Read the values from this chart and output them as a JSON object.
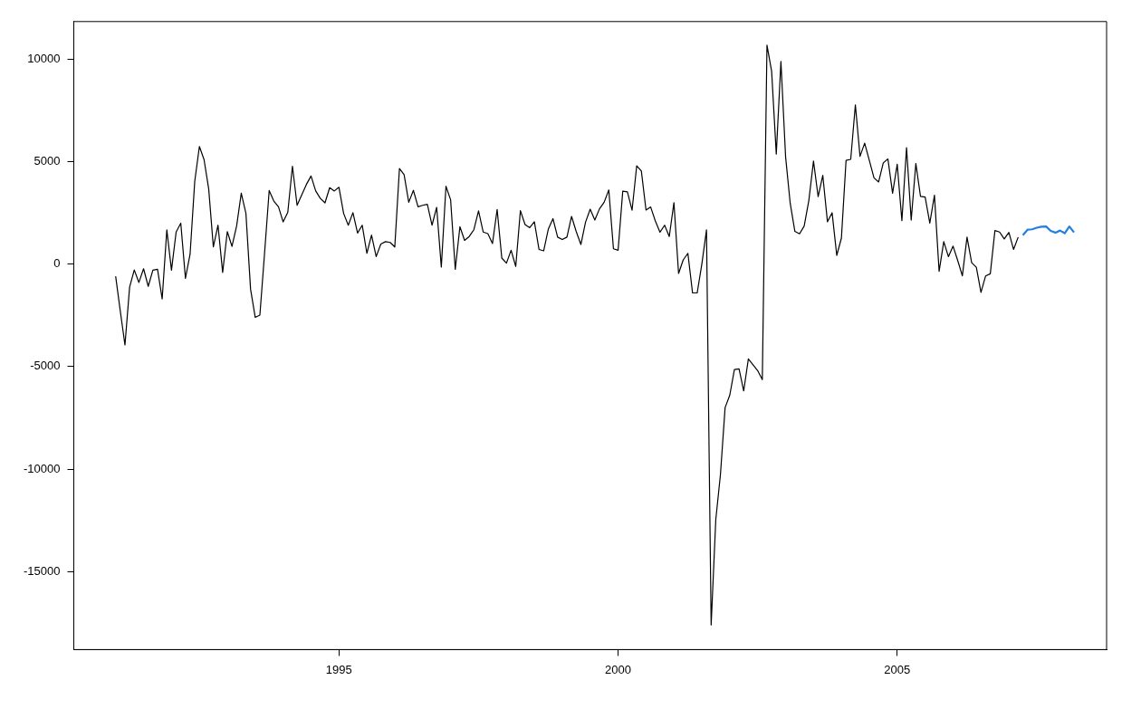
{
  "chart_data": {
    "type": "line",
    "xlim": [
      "1990-04",
      "2008-10"
    ],
    "xticks": [
      "1995",
      "2000",
      "2005"
    ],
    "ylim": [
      -18800,
      11820
    ],
    "yticks": [
      -15000,
      -10000,
      -5000,
      0,
      5000,
      10000
    ],
    "grid": false,
    "legend": false,
    "marker": "none",
    "line_style": "solid",
    "series": [
      {
        "color": "#000000",
        "x": [
          "1991-01",
          "1991-02",
          "1991-03",
          "1991-04",
          "1991-05",
          "1991-06",
          "1991-07",
          "1991-08",
          "1991-09",
          "1991-10",
          "1991-11",
          "1991-12",
          "1992-01",
          "1992-02",
          "1992-03",
          "1992-04",
          "1992-05",
          "1992-06",
          "1992-07",
          "1992-08",
          "1992-09",
          "1992-10",
          "1992-11",
          "1992-12",
          "1993-01",
          "1993-02",
          "1993-03",
          "1993-04",
          "1993-05",
          "1993-06",
          "1993-07",
          "1993-08",
          "1993-09",
          "1993-10",
          "1993-11",
          "1993-12",
          "1994-01",
          "1994-02",
          "1994-03",
          "1994-04",
          "1994-05",
          "1994-06",
          "1994-07",
          "1994-08",
          "1994-09",
          "1994-10",
          "1994-11",
          "1994-12",
          "1995-01",
          "1995-02",
          "1995-03",
          "1995-04",
          "1995-05",
          "1995-06",
          "1995-07",
          "1995-08",
          "1995-09",
          "1995-10",
          "1995-11",
          "1995-12",
          "1996-01",
          "1996-02",
          "1996-03",
          "1996-04",
          "1996-05",
          "1996-06",
          "1996-07",
          "1996-08",
          "1996-09",
          "1996-10",
          "1996-11",
          "1996-12",
          "1997-01",
          "1997-02",
          "1997-03",
          "1997-04",
          "1997-05",
          "1997-06",
          "1997-07",
          "1997-08",
          "1997-09",
          "1997-10",
          "1997-11",
          "1997-12",
          "1998-01",
          "1998-02",
          "1998-03",
          "1998-04",
          "1998-05",
          "1998-06",
          "1998-07",
          "1998-08",
          "1998-09",
          "1998-10",
          "1998-11",
          "1998-12",
          "1999-01",
          "1999-02",
          "1999-03",
          "1999-04",
          "1999-05",
          "1999-06",
          "1999-07",
          "1999-08",
          "1999-09",
          "1999-10",
          "1999-11",
          "1999-12",
          "2000-01",
          "2000-02",
          "2000-03",
          "2000-04",
          "2000-05",
          "2000-06",
          "2000-07",
          "2000-08",
          "2000-09",
          "2000-10",
          "2000-11",
          "2000-12",
          "2001-01",
          "2001-02",
          "2001-03",
          "2001-04",
          "2001-05",
          "2001-06",
          "2001-07",
          "2001-08",
          "2001-09",
          "2001-10",
          "2001-11",
          "2001-12",
          "2002-01",
          "2002-02",
          "2002-03",
          "2002-04",
          "2002-05",
          "2002-06",
          "2002-07",
          "2002-08",
          "2002-09",
          "2002-10",
          "2002-11",
          "2002-12",
          "2003-01",
          "2003-02",
          "2003-03",
          "2003-04",
          "2003-05",
          "2003-06",
          "2003-07",
          "2003-08",
          "2003-09",
          "2003-10",
          "2003-11",
          "2003-12",
          "2004-01",
          "2004-02",
          "2004-03",
          "2004-04",
          "2004-05",
          "2004-06",
          "2004-07",
          "2004-08",
          "2004-09",
          "2004-10",
          "2004-11",
          "2004-12",
          "2005-01",
          "2005-02",
          "2005-03",
          "2005-04",
          "2005-05",
          "2005-06",
          "2005-07",
          "2005-08",
          "2005-09",
          "2005-10",
          "2005-11",
          "2005-12",
          "2006-01",
          "2006-02",
          "2006-03",
          "2006-04",
          "2006-05",
          "2006-06",
          "2006-07",
          "2006-08",
          "2006-09",
          "2006-10",
          "2006-11",
          "2006-12",
          "2007-01",
          "2007-02",
          "2007-03"
        ],
        "values": [
          -600,
          -2300,
          -3950,
          -1130,
          -290,
          -900,
          -230,
          -1090,
          -300,
          -260,
          -1700,
          1660,
          -300,
          1560,
          1990,
          -700,
          480,
          4030,
          5730,
          5090,
          3660,
          830,
          1890,
          -410,
          1580,
          860,
          1850,
          3450,
          2470,
          -1230,
          -2600,
          -2490,
          500,
          3580,
          3070,
          2790,
          2050,
          2520,
          4770,
          2860,
          3370,
          3880,
          4290,
          3560,
          3200,
          2980,
          3720,
          3560,
          3740,
          2470,
          1890,
          2500,
          1510,
          1890,
          520,
          1410,
          360,
          970,
          1090,
          1050,
          830,
          4650,
          4360,
          3010,
          3590,
          2790,
          2860,
          2910,
          1890,
          2760,
          -150,
          3790,
          3130,
          -260,
          1820,
          1150,
          1340,
          1670,
          2590,
          1560,
          1480,
          1000,
          2660,
          290,
          40,
          670,
          -120,
          2600,
          1920,
          1770,
          2060,
          710,
          640,
          1700,
          2210,
          1310,
          1190,
          1310,
          2320,
          1580,
          950,
          2040,
          2670,
          2140,
          2690,
          3010,
          3610,
          740,
          670,
          3550,
          3520,
          2620,
          4790,
          4530,
          2630,
          2780,
          2100,
          1550,
          1890,
          1340,
          2990,
          -460,
          200,
          520,
          -1410,
          -1410,
          0,
          1660,
          -17600,
          -12460,
          -10260,
          -7000,
          -6400,
          -5150,
          -5110,
          -6190,
          -4630,
          -4910,
          -5200,
          -5640,
          10670,
          9400,
          5360,
          9870,
          5230,
          2950,
          1590,
          1470,
          1850,
          3100,
          5020,
          3280,
          4320,
          2060,
          2500,
          420,
          1260,
          5050,
          5100,
          7760,
          5250,
          5890,
          5050,
          4200,
          4000,
          4930,
          5120,
          3450,
          4860,
          2110,
          5670,
          2140,
          4900,
          3300,
          3260,
          1990,
          3350,
          -360,
          1090,
          360,
          870,
          170,
          -580,
          1310,
          60,
          -160,
          -1380,
          -580,
          -480,
          1630,
          1560,
          1220,
          1540,
          710,
          1310
        ]
      },
      {
        "color": "#2281e0",
        "x": [
          "2007-04",
          "2007-05",
          "2007-06",
          "2007-07",
          "2007-08",
          "2007-09",
          "2007-10",
          "2007-11",
          "2007-12",
          "2008-01",
          "2008-02",
          "2008-03"
        ],
        "values": [
          1400,
          1670,
          1690,
          1770,
          1820,
          1830,
          1610,
          1530,
          1630,
          1500,
          1830,
          1540
        ]
      }
    ]
  }
}
